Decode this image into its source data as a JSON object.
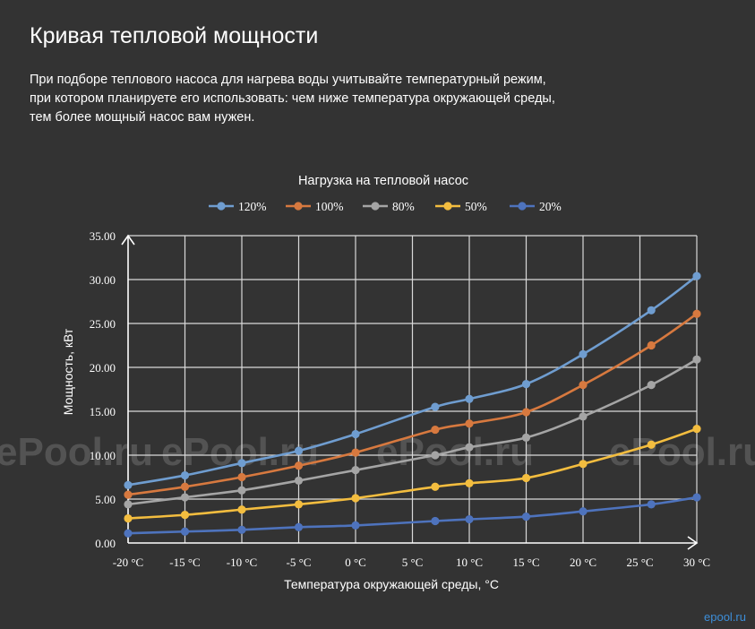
{
  "page": {
    "title": "Кривая тепловой мощности",
    "description_lines": [
      "При подборе теплового насоса для нагрева воды учитывайте температурный режим,",
      "при котором планируете его использовать: чем ниже температура окружающей среды,",
      "тем более мощный насос вам нужен."
    ],
    "watermark": "ePool.ru",
    "corner_logo": "epool.ru"
  },
  "chart_data": {
    "type": "line",
    "title": "Нагрузка на тепловой насос",
    "xlabel": "Температура окружающей среды, °С",
    "ylabel": "Мощность, кВт",
    "x": [
      -20,
      -15,
      -10,
      -5,
      0,
      5,
      10,
      15,
      20,
      25,
      30
    ],
    "x_tick_labels": [
      "-20 °C",
      "-15 °C",
      "-10 °C",
      "-5 °C",
      "0 °C",
      "5 °C",
      "10 °C",
      "15 °C",
      "20 °C",
      "25 °C",
      "30 °C"
    ],
    "xlim": [
      -20,
      30
    ],
    "ylim": [
      0,
      35
    ],
    "y_tick_labels": [
      "0.00",
      "5.00",
      "10.00",
      "15.00",
      "20.00",
      "25.00",
      "30.00",
      "35.00"
    ],
    "grid": true,
    "legend_position": "top",
    "series": [
      {
        "name": "120%",
        "color": "#6f9dd0",
        "x": [
          -20,
          -15,
          -10,
          -5,
          0,
          7,
          10,
          15,
          20,
          26,
          30
        ],
        "y": [
          6.6,
          7.7,
          9.1,
          10.5,
          12.4,
          15.5,
          16.4,
          18.1,
          21.5,
          26.5,
          30.4
        ]
      },
      {
        "name": "100%",
        "color": "#d7793f",
        "x": [
          -20,
          -15,
          -10,
          -5,
          0,
          7,
          10,
          15,
          20,
          26,
          30
        ],
        "y": [
          5.5,
          6.4,
          7.5,
          8.8,
          10.3,
          12.9,
          13.6,
          14.9,
          18.0,
          22.5,
          26.1
        ]
      },
      {
        "name": "80%",
        "color": "#a5a5a5",
        "x": [
          -20,
          -15,
          -10,
          -5,
          0,
          7,
          10,
          15,
          20,
          26,
          30
        ],
        "y": [
          4.4,
          5.2,
          6.0,
          7.1,
          8.3,
          10.0,
          10.9,
          12.0,
          14.4,
          18.0,
          20.9
        ]
      },
      {
        "name": "50%",
        "color": "#f3bd3f",
        "x": [
          -20,
          -15,
          -10,
          -5,
          0,
          7,
          10,
          15,
          20,
          26,
          30
        ],
        "y": [
          2.8,
          3.2,
          3.8,
          4.4,
          5.1,
          6.4,
          6.8,
          7.4,
          9.0,
          11.2,
          13.0
        ]
      },
      {
        "name": "20%",
        "color": "#4e73bd",
        "x": [
          -20,
          -15,
          -10,
          -5,
          0,
          7,
          10,
          15,
          20,
          26,
          30
        ],
        "y": [
          1.1,
          1.3,
          1.5,
          1.8,
          2.0,
          2.5,
          2.7,
          3.0,
          3.6,
          4.4,
          5.2
        ]
      }
    ]
  }
}
